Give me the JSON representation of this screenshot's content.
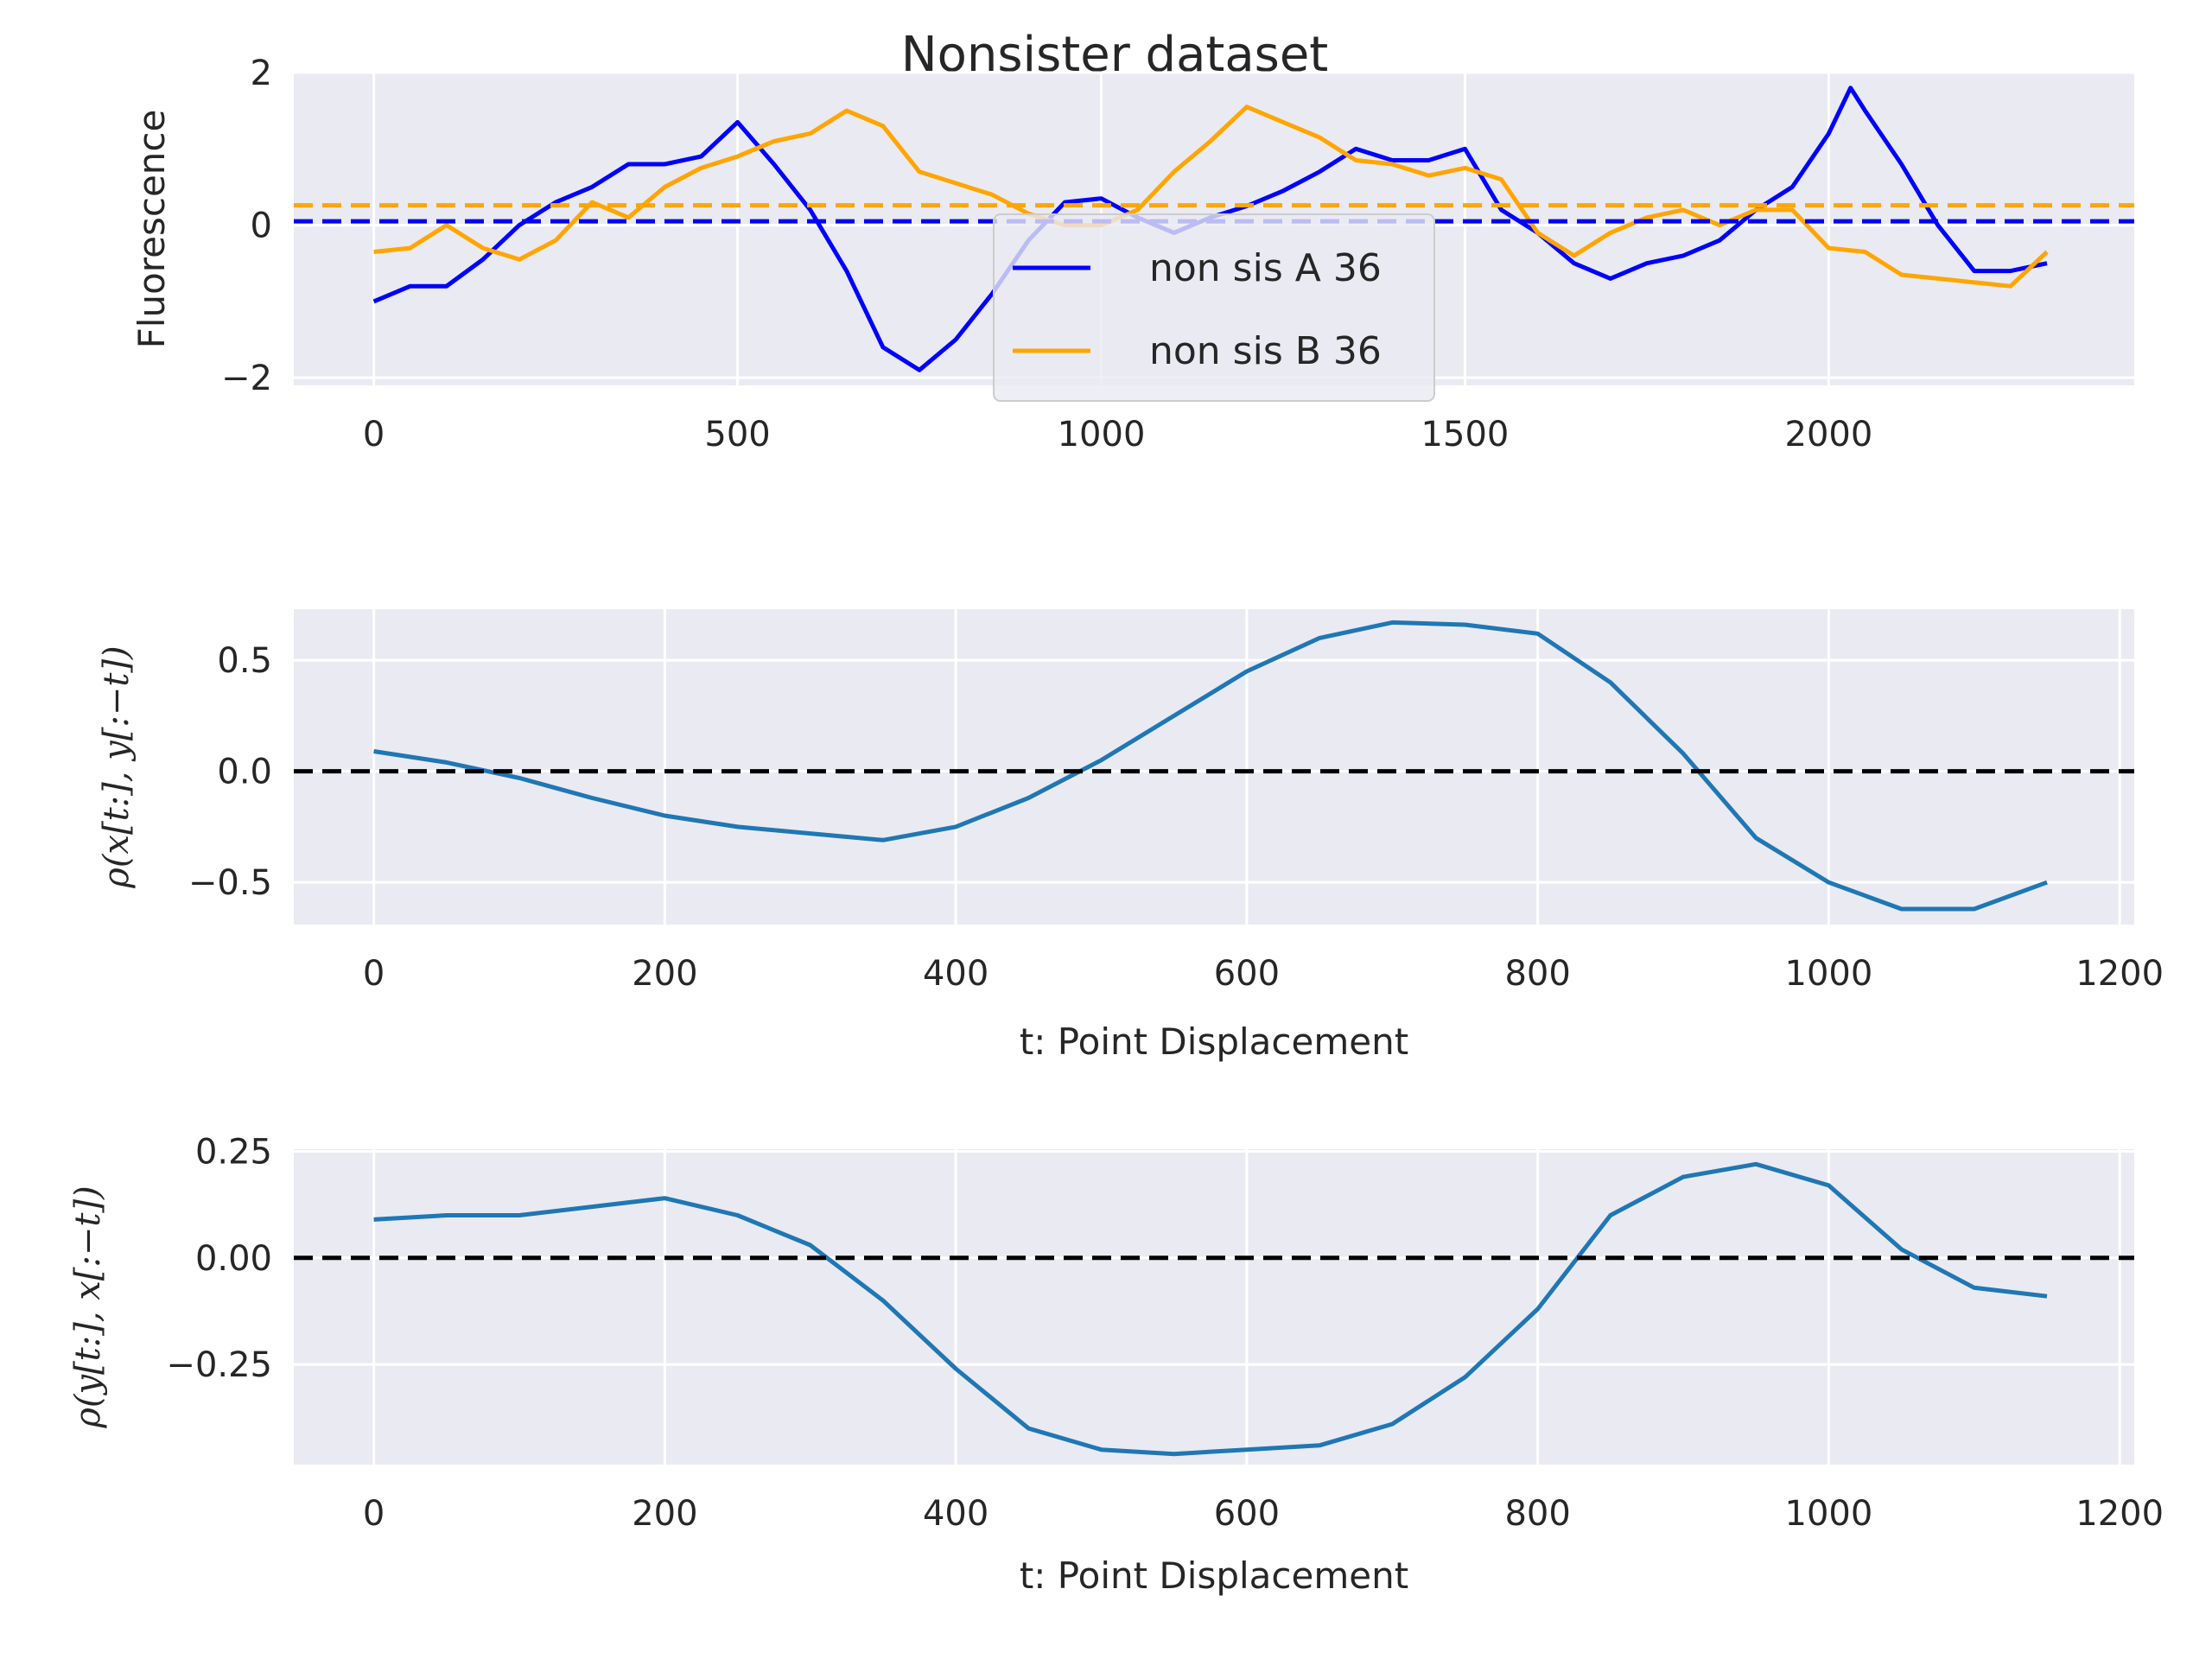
{
  "figure": {
    "title": "Nonsister dataset"
  },
  "chart_data": [
    {
      "type": "line",
      "ylabel": "Fluorescence",
      "xlabel": "",
      "xlim": [
        -110,
        2420
      ],
      "ylim": [
        -2.1,
        2.0
      ],
      "xticks": [
        0,
        500,
        1000,
        1500,
        2000
      ],
      "yticks": [
        -2,
        0,
        2
      ],
      "xtick_labels": [
        "0",
        "500",
        "1000",
        "1500",
        "2000"
      ],
      "ytick_labels": [
        "−2",
        "0",
        "2"
      ],
      "grid": true,
      "legend": "center",
      "series": [
        {
          "name": "non sis A 36",
          "color": "#0000ff",
          "x": [
            0,
            50,
            100,
            150,
            200,
            250,
            300,
            350,
            400,
            450,
            500,
            550,
            600,
            650,
            700,
            750,
            800,
            850,
            900,
            950,
            1000,
            1050,
            1100,
            1150,
            1200,
            1250,
            1300,
            1350,
            1400,
            1450,
            1500,
            1550,
            1600,
            1650,
            1700,
            1750,
            1800,
            1850,
            1900,
            1950,
            2000,
            2030,
            2050,
            2100,
            2150,
            2200,
            2250,
            2300
          ],
          "values": [
            -1.0,
            -0.8,
            -0.8,
            -0.45,
            0.0,
            0.3,
            0.5,
            0.8,
            0.8,
            0.9,
            1.35,
            0.8,
            0.2,
            -0.6,
            -1.6,
            -1.9,
            -1.5,
            -0.9,
            -0.2,
            0.3,
            0.35,
            0.1,
            -0.1,
            0.1,
            0.25,
            0.45,
            0.7,
            1.0,
            0.85,
            0.85,
            1.0,
            0.2,
            -0.1,
            -0.5,
            -0.7,
            -0.5,
            -0.4,
            -0.2,
            0.2,
            0.5,
            1.2,
            1.8,
            1.5,
            0.8,
            0.0,
            -0.6,
            -0.6,
            -0.5
          ]
        },
        {
          "name": "non sis B 36",
          "color": "#ffa500",
          "x": [
            0,
            50,
            100,
            150,
            200,
            250,
            300,
            350,
            400,
            450,
            500,
            550,
            600,
            650,
            700,
            750,
            800,
            850,
            900,
            950,
            1000,
            1050,
            1100,
            1150,
            1200,
            1250,
            1300,
            1350,
            1400,
            1450,
            1500,
            1550,
            1600,
            1650,
            1700,
            1750,
            1800,
            1850,
            1900,
            1950,
            2000,
            2050,
            2100,
            2150,
            2200,
            2250,
            2300
          ],
          "values": [
            -0.35,
            -0.3,
            0.0,
            -0.3,
            -0.45,
            -0.2,
            0.3,
            0.1,
            0.5,
            0.75,
            0.9,
            1.1,
            1.2,
            1.5,
            1.3,
            0.7,
            0.55,
            0.4,
            0.15,
            0.0,
            0.0,
            0.2,
            0.7,
            1.1,
            1.55,
            1.35,
            1.15,
            0.85,
            0.8,
            0.65,
            0.75,
            0.6,
            -0.1,
            -0.4,
            -0.1,
            0.1,
            0.2,
            0.0,
            0.2,
            0.2,
            -0.3,
            -0.35,
            -0.65,
            -0.7,
            -0.75,
            -0.8,
            -0.35
          ]
        }
      ],
      "hlines": [
        {
          "y": 0.05,
          "color": "#0000ff"
        },
        {
          "y": 0.26,
          "color": "#ffa500"
        }
      ]
    },
    {
      "type": "line",
      "ylabel": "ρ(x[t:], y[:−t])",
      "xlabel": "t: Point Displacement",
      "xlim": [
        -55,
        1210
      ],
      "ylim": [
        -0.69,
        0.73
      ],
      "xticks": [
        0,
        200,
        400,
        600,
        800,
        1000,
        1200
      ],
      "yticks": [
        -0.5,
        0.0,
        0.5
      ],
      "xtick_labels": [
        "0",
        "200",
        "400",
        "600",
        "800",
        "1000",
        "1200"
      ],
      "ytick_labels": [
        "−0.5",
        "0.0",
        "0.5"
      ],
      "grid": true,
      "series": [
        {
          "color": "#1f77b4",
          "x": [
            0,
            50,
            100,
            150,
            200,
            250,
            300,
            350,
            400,
            450,
            500,
            550,
            600,
            650,
            700,
            750,
            800,
            850,
            900,
            950,
            1000,
            1050,
            1100,
            1150
          ],
          "values": [
            0.09,
            0.04,
            -0.03,
            -0.12,
            -0.2,
            -0.25,
            -0.28,
            -0.31,
            -0.25,
            -0.12,
            0.05,
            0.25,
            0.45,
            0.6,
            0.67,
            0.66,
            0.62,
            0.4,
            0.08,
            -0.3,
            -0.5,
            -0.62,
            -0.62,
            -0.5
          ]
        }
      ],
      "hlines": [
        {
          "y": 0.0,
          "color": "#000000"
        }
      ]
    },
    {
      "type": "line",
      "ylabel": "ρ(y[t:], x[:−t])",
      "xlabel": "t: Point Displacement",
      "xlim": [
        -55,
        1210
      ],
      "ylim": [
        -0.485,
        0.255
      ],
      "xticks": [
        0,
        200,
        400,
        600,
        800,
        1000,
        1200
      ],
      "yticks": [
        -0.25,
        0.0,
        0.25
      ],
      "xtick_labels": [
        "0",
        "200",
        "400",
        "600",
        "800",
        "1000",
        "1200"
      ],
      "ytick_labels": [
        "−0.25",
        "0.00",
        "0.25"
      ],
      "grid": true,
      "series": [
        {
          "color": "#1f77b4",
          "x": [
            0,
            50,
            100,
            150,
            200,
            250,
            300,
            350,
            400,
            450,
            500,
            550,
            600,
            650,
            700,
            750,
            800,
            850,
            900,
            950,
            1000,
            1050,
            1100,
            1150
          ],
          "values": [
            0.09,
            0.1,
            0.1,
            0.12,
            0.14,
            0.1,
            0.03,
            -0.1,
            -0.26,
            -0.4,
            -0.45,
            -0.46,
            -0.45,
            -0.44,
            -0.39,
            -0.28,
            -0.12,
            0.1,
            0.19,
            0.22,
            0.17,
            0.02,
            -0.07,
            -0.09
          ]
        }
      ],
      "hlines": [
        {
          "y": 0.0,
          "color": "#000000"
        }
      ]
    }
  ]
}
